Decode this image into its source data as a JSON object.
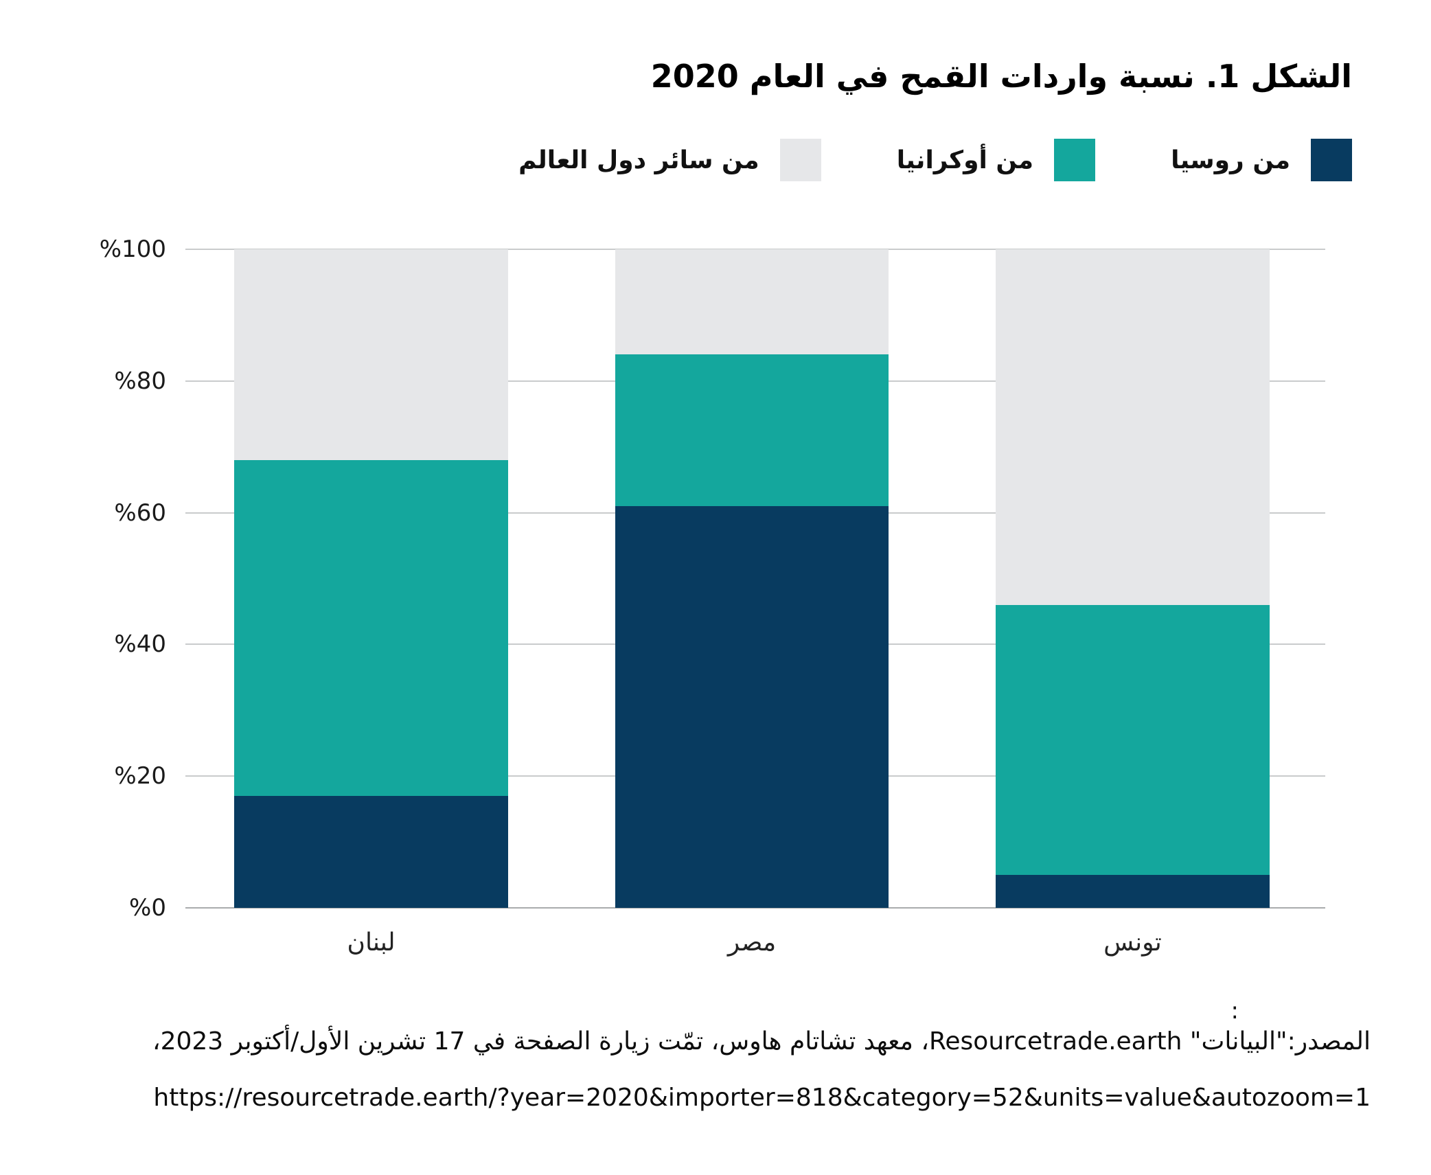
{
  "title": "الشكل 1. نسبة واردات القمح في العام 2020",
  "legend": {
    "items": [
      {
        "key": "russia",
        "label": "من روسيا",
        "color": "#083b60"
      },
      {
        "key": "ukraine",
        "label": "من أوكرانيا",
        "color": "#14a79d"
      },
      {
        "key": "rest_of_world",
        "label": "من سائر دول العالم",
        "color": "#e6e7e9"
      }
    ]
  },
  "chart_data": {
    "type": "bar",
    "stacked": true,
    "title": "الشكل 1. نسبة واردات القمح في العام 2020",
    "categories": [
      "لبنان",
      "مصر",
      "تونس"
    ],
    "series": [
      {
        "key": "russia",
        "name": "من روسيا",
        "color": "#083b60",
        "values": [
          17,
          61,
          5
        ]
      },
      {
        "key": "ukraine",
        "name": "من أوكرانيا",
        "color": "#14a79d",
        "values": [
          51,
          23,
          41
        ]
      },
      {
        "key": "rest_of_world",
        "name": "من سائر دول العالم",
        "color": "#e6e7e9",
        "values": [
          32,
          16,
          54
        ]
      }
    ],
    "y_axis": {
      "unit": "%",
      "range": [
        0,
        100
      ],
      "ticks": [
        {
          "label": "%0",
          "value": 0
        },
        {
          "label": "%20",
          "value": 20
        },
        {
          "label": "%40",
          "value": 40
        },
        {
          "label": "%60",
          "value": 60
        },
        {
          "label": "%80",
          "value": 80
        },
        {
          "label": "%100",
          "value": 100
        }
      ]
    },
    "grid": true,
    "legend_position": "top-right"
  },
  "footer": {
    "colon": ":",
    "source": "المصدر:\"البيانات\" Resourcetrade.earth، معهد تشاتام هاوس، تمّت زيارة الصفحة في 17 تشرين الأول/أكتوبر 2023،",
    "url": "https://resourcetrade.earth/?year=2020&importer=818&category=52&units=value&autozoom=1"
  },
  "colors": {
    "russia": "#083b60",
    "ukraine": "#14a79d",
    "rest_of_world": "#e6e7e9",
    "gridline": "#c9cbcc",
    "baseline": "#a9abad",
    "text": "#111111"
  }
}
